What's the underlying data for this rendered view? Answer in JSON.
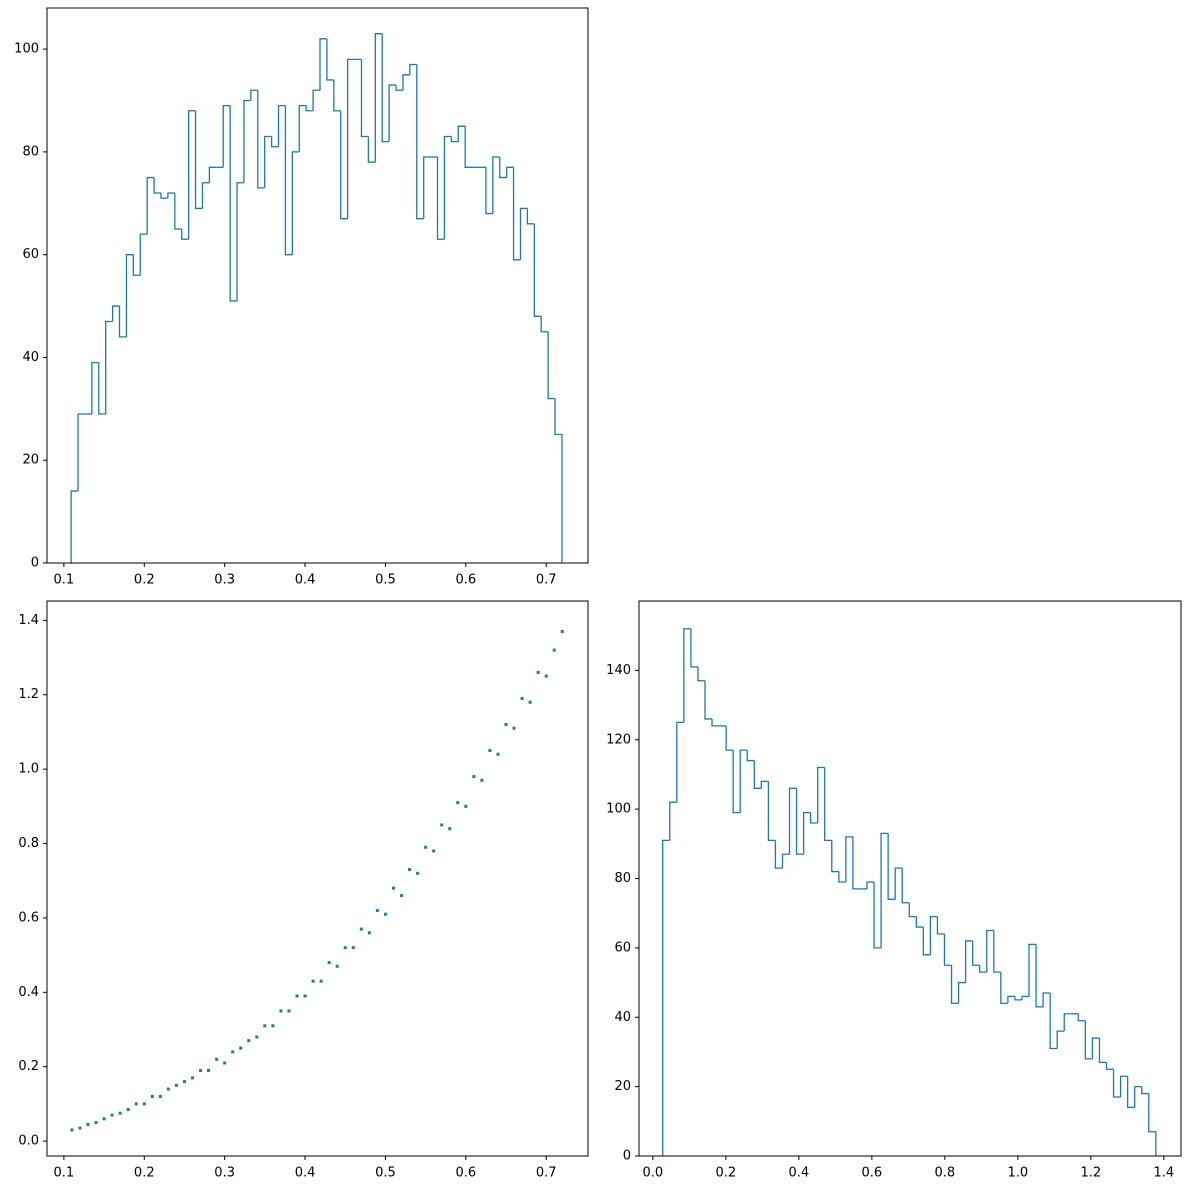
{
  "chart_data": [
    {
      "type": "histogram",
      "histtype": "step",
      "color": "#1f77b4",
      "bins": [
        0.109,
        0.1176,
        0.1262,
        0.1348,
        0.1434,
        0.152,
        0.1606,
        0.1692,
        0.1778,
        0.1864,
        0.195,
        0.2036,
        0.2122,
        0.2208,
        0.2294,
        0.238,
        0.2466,
        0.2552,
        0.2638,
        0.2724,
        0.281,
        0.2896,
        0.2982,
        0.3068,
        0.3154,
        0.324,
        0.3326,
        0.3412,
        0.3498,
        0.3584,
        0.367,
        0.3756,
        0.3842,
        0.3928,
        0.4014,
        0.41,
        0.4186,
        0.4272,
        0.4358,
        0.4444,
        0.453,
        0.4616,
        0.4702,
        0.4788,
        0.4874,
        0.496,
        0.5046,
        0.5132,
        0.5218,
        0.5304,
        0.539,
        0.5476,
        0.5562,
        0.5648,
        0.5734,
        0.582,
        0.5906,
        0.5992,
        0.6078,
        0.6164,
        0.625,
        0.6336,
        0.6422,
        0.6508,
        0.6594,
        0.668,
        0.6766,
        0.6852,
        0.6938,
        0.7024,
        0.711,
        0.7196
      ],
      "values": [
        14,
        29,
        29,
        39,
        29,
        47,
        50,
        44,
        60,
        56,
        64,
        75,
        72,
        71,
        72,
        65,
        63,
        88,
        69,
        74,
        77,
        77,
        89,
        51,
        74,
        90,
        92,
        73,
        83,
        81,
        89,
        60,
        80,
        89,
        88,
        92,
        102,
        94,
        88,
        67,
        98,
        98,
        83,
        78,
        103,
        82,
        93,
        92,
        95,
        97,
        67,
        79,
        79,
        63,
        83,
        82,
        85,
        77,
        77,
        77,
        68,
        79,
        75,
        77,
        59,
        69,
        66,
        48,
        45,
        32,
        25
      ],
      "xlim": [
        0.079,
        0.752
      ],
      "xticks": [
        0.1,
        0.2,
        0.3,
        0.4,
        0.5,
        0.6,
        0.7
      ],
      "ylim": [
        0,
        108
      ],
      "yticks": [
        0,
        20,
        40,
        60,
        80,
        100
      ]
    },
    {
      "type": "scatter",
      "color": "#1f77b4",
      "x": [
        0.11,
        0.12,
        0.13,
        0.14,
        0.15,
        0.16,
        0.17,
        0.18,
        0.19,
        0.2,
        0.21,
        0.22,
        0.23,
        0.24,
        0.25,
        0.26,
        0.27,
        0.28,
        0.29,
        0.3,
        0.31,
        0.32,
        0.33,
        0.34,
        0.35,
        0.36,
        0.37,
        0.38,
        0.39,
        0.4,
        0.41,
        0.42,
        0.43,
        0.44,
        0.45,
        0.46,
        0.47,
        0.48,
        0.49,
        0.5,
        0.51,
        0.52,
        0.53,
        0.54,
        0.55,
        0.56,
        0.57,
        0.58,
        0.59,
        0.6,
        0.61,
        0.62,
        0.63,
        0.64,
        0.65,
        0.66,
        0.67,
        0.68,
        0.69,
        0.7,
        0.71,
        0.72
      ],
      "y": [
        0.03,
        0.035,
        0.045,
        0.05,
        0.06,
        0.07,
        0.075,
        0.085,
        0.1,
        0.1,
        0.12,
        0.12,
        0.14,
        0.15,
        0.16,
        0.17,
        0.19,
        0.19,
        0.22,
        0.21,
        0.24,
        0.25,
        0.27,
        0.28,
        0.31,
        0.31,
        0.35,
        0.35,
        0.39,
        0.39,
        0.43,
        0.43,
        0.48,
        0.47,
        0.52,
        0.52,
        0.57,
        0.56,
        0.62,
        0.61,
        0.68,
        0.66,
        0.73,
        0.72,
        0.79,
        0.78,
        0.85,
        0.84,
        0.91,
        0.9,
        0.98,
        0.97,
        1.05,
        1.04,
        1.12,
        1.11,
        1.19,
        1.18,
        1.26,
        1.25,
        1.32,
        1.37
      ],
      "xlim": [
        0.079,
        0.752
      ],
      "xticks": [
        0.1,
        0.2,
        0.3,
        0.4,
        0.5,
        0.6,
        0.7
      ],
      "ylim": [
        -0.04,
        1.452
      ],
      "yticks": [
        {
          "value": 0,
          "label": "0.0"
        },
        0.2,
        0.4,
        0.6,
        0.8,
        {
          "value": 1,
          "label": "1.0"
        },
        1.2,
        1.4
      ]
    },
    {
      "type": "histogram",
      "histtype": "step",
      "color": "#1f77b4",
      "bins": [
        0.027,
        0.0463,
        0.0656,
        0.0849,
        0.1042,
        0.1235,
        0.1428,
        0.1621,
        0.1814,
        0.2007,
        0.22,
        0.2393,
        0.2586,
        0.2779,
        0.2972,
        0.3165,
        0.3358,
        0.3551,
        0.3744,
        0.3937,
        0.413,
        0.4323,
        0.4516,
        0.4709,
        0.4902,
        0.5095,
        0.5288,
        0.5481,
        0.5674,
        0.5867,
        0.606,
        0.6253,
        0.6446,
        0.6639,
        0.6832,
        0.7025,
        0.7218,
        0.7411,
        0.7604,
        0.7797,
        0.799,
        0.8183,
        0.8376,
        0.8569,
        0.8762,
        0.8955,
        0.9148,
        0.9341,
        0.9534,
        0.9727,
        0.992,
        1.0113,
        1.0306,
        1.0499,
        1.0692,
        1.0885,
        1.1078,
        1.1271,
        1.1464,
        1.1657,
        1.185,
        1.2043,
        1.2236,
        1.2429,
        1.2622,
        1.2815,
        1.3008,
        1.3201,
        1.3394,
        1.3587,
        1.378
      ],
      "values": [
        91,
        102,
        125,
        152,
        141,
        137,
        126,
        124,
        124,
        117,
        99,
        117,
        114,
        106,
        108,
        91,
        83,
        87,
        106,
        87,
        99,
        96,
        112,
        91,
        82,
        79,
        92,
        77,
        77,
        79,
        60,
        93,
        74,
        83,
        73,
        69,
        66,
        58,
        69,
        64,
        55,
        44,
        50,
        62,
        55,
        53,
        65,
        53,
        44,
        46,
        45,
        46,
        61,
        43,
        47,
        31,
        36,
        41,
        41,
        39,
        28,
        34,
        27,
        25,
        17,
        23,
        14,
        20,
        18,
        7
      ],
      "xlim": [
        -0.038,
        1.447
      ],
      "xticks": [
        {
          "value": 0,
          "label": "0.0"
        },
        0.2,
        0.4,
        0.6,
        0.8,
        {
          "value": 1,
          "label": "1.0"
        },
        1.2,
        1.4
      ],
      "ylim": [
        0,
        160
      ],
      "yticks": [
        0,
        20,
        40,
        60,
        80,
        100,
        120,
        140
      ]
    }
  ]
}
